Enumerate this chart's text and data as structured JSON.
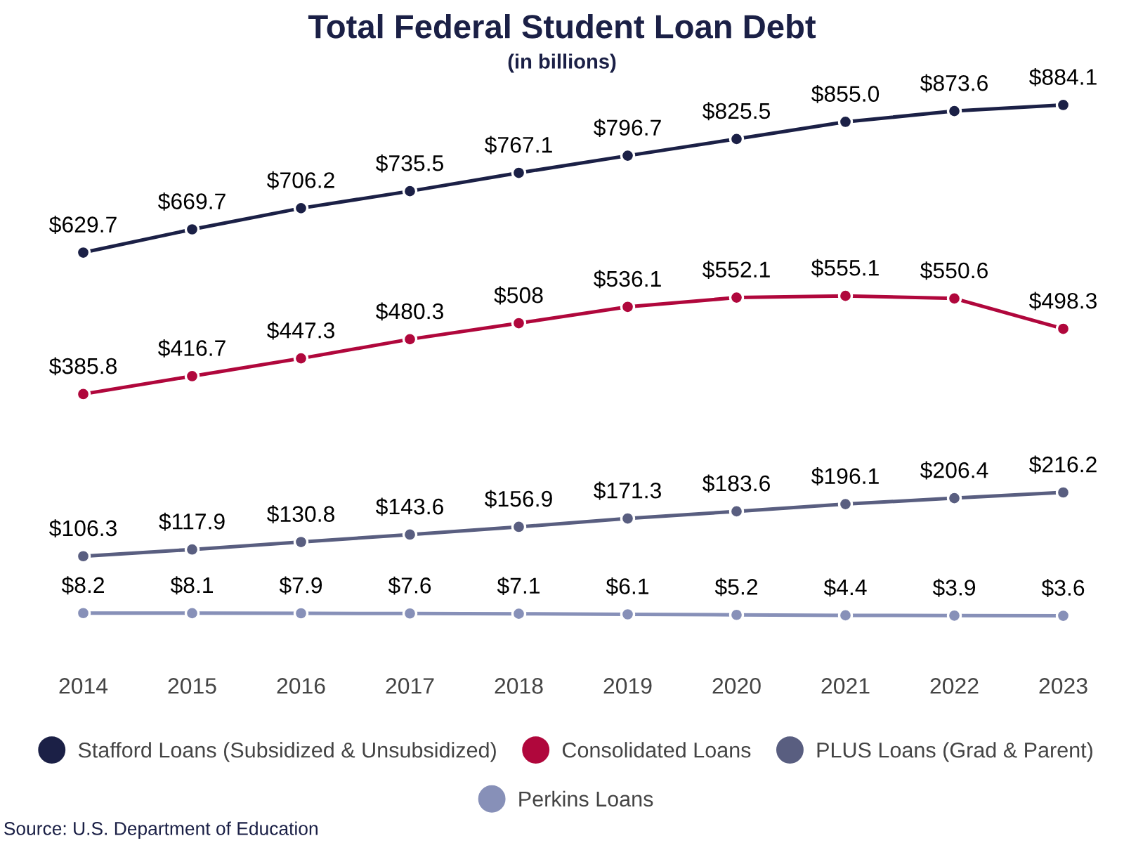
{
  "chart_data": {
    "type": "line",
    "title": "Total Federal Student Loan Debt",
    "subtitle": "(in billions)",
    "categories": [
      "2014",
      "2015",
      "2016",
      "2017",
      "2018",
      "2019",
      "2020",
      "2021",
      "2022",
      "2023"
    ],
    "series": [
      {
        "name": "Stafford Loans (Subsidized & Unsubsidized)",
        "color": "#1b2046",
        "values": [
          629.7,
          669.7,
          706.2,
          735.5,
          767.1,
          796.7,
          825.5,
          855.0,
          873.6,
          884.1
        ],
        "value_labels": [
          "$629.7",
          "$669.7",
          "$706.2",
          "$735.5",
          "$767.1",
          "$796.7",
          "$825.5",
          "$855.0",
          "$873.6",
          "$884.1"
        ]
      },
      {
        "name": "Consolidated Loans",
        "color": "#b0073c",
        "values": [
          385.8,
          416.7,
          447.3,
          480.3,
          508,
          536.1,
          552.1,
          555.1,
          550.6,
          498.3
        ],
        "value_labels": [
          "$385.8",
          "$416.7",
          "$447.3",
          "$480.3",
          "$508",
          "$536.1",
          "$552.1",
          "$555.1",
          "$550.6",
          "$498.3"
        ]
      },
      {
        "name": "PLUS Loans (Grad & Parent)",
        "color": "#595e80",
        "values": [
          106.3,
          117.9,
          130.8,
          143.6,
          156.9,
          171.3,
          183.6,
          196.1,
          206.4,
          216.2
        ],
        "value_labels": [
          "$106.3",
          "$117.9",
          "$130.8",
          "$143.6",
          "$156.9",
          "$171.3",
          "$183.6",
          "$196.1",
          "$206.4",
          "$216.2"
        ]
      },
      {
        "name": "Perkins Loans",
        "color": "#8790b8",
        "values": [
          8.2,
          8.1,
          7.9,
          7.6,
          7.1,
          6.1,
          5.2,
          4.4,
          3.9,
          3.6
        ],
        "value_labels": [
          "$8.2",
          "$8.1",
          "$7.9",
          "$7.6",
          "$7.1",
          "$6.1",
          "$5.2",
          "$4.4",
          "$3.9",
          "$3.6"
        ]
      }
    ],
    "tick_labels": "x",
    "marker": "circle",
    "line_style": "solid",
    "grid": false,
    "legend": "bottom",
    "annotations": [
      "Source: U.S. Department of Education"
    ]
  }
}
